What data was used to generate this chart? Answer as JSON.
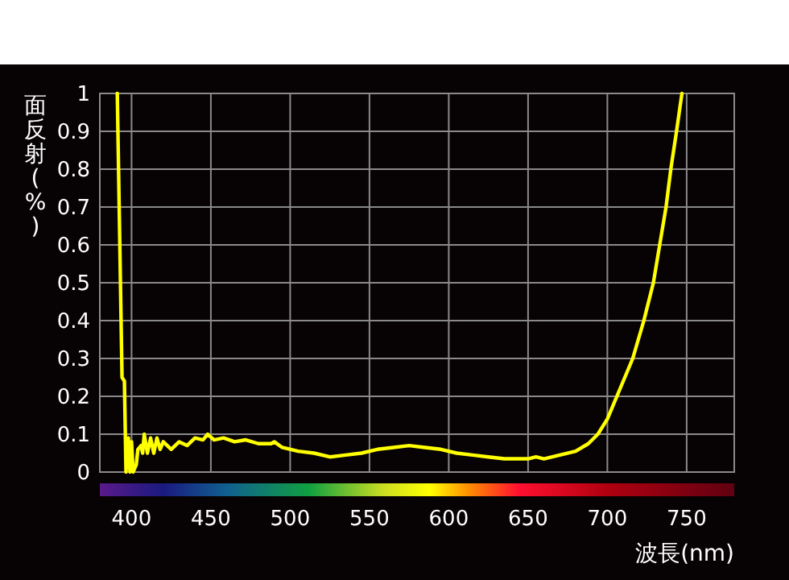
{
  "chart_data": {
    "type": "line",
    "xlabel": "波長(nm)",
    "ylabel": "面反射(%)",
    "x": [
      391,
      394,
      395.5,
      396.5,
      398,
      399,
      400,
      401,
      403,
      404,
      406,
      407,
      408,
      410,
      412,
      414,
      416,
      418,
      420,
      425,
      430,
      435,
      440,
      445,
      448,
      452,
      458,
      465,
      472,
      480,
      488,
      490,
      495,
      505,
      515,
      525,
      535,
      545,
      555,
      565,
      575,
      585,
      595,
      605,
      615,
      625,
      635,
      650,
      655,
      660,
      670,
      680,
      688,
      694,
      700,
      706,
      716,
      723,
      729,
      733,
      737,
      740,
      743.6,
      747
    ],
    "series": [
      {
        "color": "#ffff00",
        "values": [
          1.0,
          0.25,
          0.24,
          0.0,
          0.09,
          0.0,
          0.08,
          0.0,
          0.02,
          0.06,
          0.07,
          0.05,
          0.1,
          0.05,
          0.09,
          0.05,
          0.09,
          0.06,
          0.08,
          0.06,
          0.08,
          0.07,
          0.09,
          0.085,
          0.1,
          0.085,
          0.09,
          0.08,
          0.085,
          0.075,
          0.075,
          0.08,
          0.065,
          0.055,
          0.05,
          0.04,
          0.045,
          0.05,
          0.06,
          0.065,
          0.07,
          0.065,
          0.06,
          0.05,
          0.045,
          0.04,
          0.035,
          0.035,
          0.04,
          0.035,
          0.045,
          0.055,
          0.075,
          0.1,
          0.14,
          0.2,
          0.3,
          0.4,
          0.5,
          0.6,
          0.7,
          0.8,
          0.9,
          1.0
        ]
      }
    ],
    "xlim": [
      380,
      780
    ],
    "ylim": [
      0,
      1
    ],
    "xticks": [
      400,
      450,
      500,
      550,
      600,
      650,
      700,
      750
    ],
    "yticks": [
      0,
      0.1,
      0.2,
      0.3,
      0.4,
      0.5,
      0.6,
      0.7,
      0.8,
      0.9,
      1
    ],
    "grid": true,
    "line_style": "solid"
  }
}
